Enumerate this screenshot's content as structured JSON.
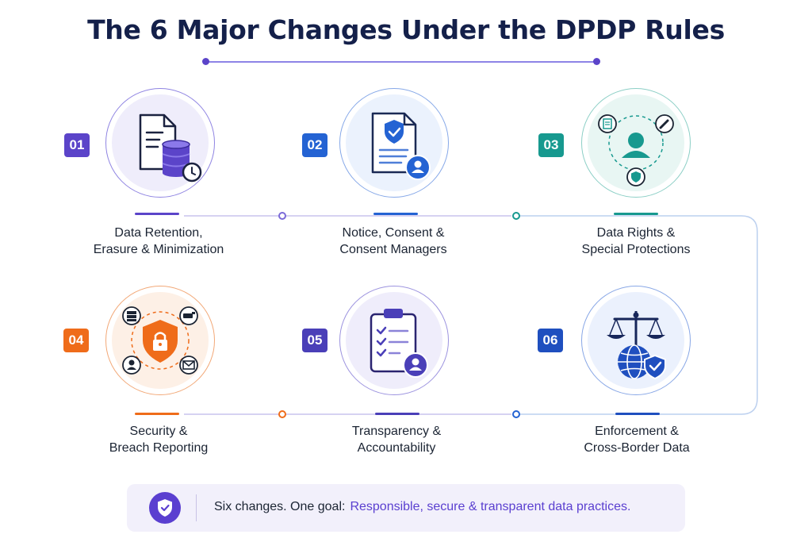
{
  "title": "The 6 Major Changes Under the DPDP Rules",
  "colors": {
    "title": "#14204a",
    "purple": "#5b44c9",
    "blue": "#2463d3",
    "teal": "#17998f",
    "orange": "#ef6c1a",
    "indigo": "#4a3fb8",
    "navy": "#1f4fbf"
  },
  "items": [
    {
      "number": "01",
      "line1": "Data Retention,",
      "line2": "Erasure & Minimization",
      "icon": "document-database-clock-icon",
      "color": "#5b44c9"
    },
    {
      "number": "02",
      "line1": "Notice, Consent &",
      "line2": "Consent Managers",
      "icon": "document-shield-user-icon",
      "color": "#2463d3"
    },
    {
      "number": "03",
      "line1": "Data Rights &",
      "line2": "Special Protections",
      "icon": "user-rights-cycle-icon",
      "color": "#17998f"
    },
    {
      "number": "04",
      "line1": "Security &",
      "line2": "Breach Reporting",
      "icon": "shield-lock-network-icon",
      "color": "#ef6c1a"
    },
    {
      "number": "05",
      "line1": "Transparency &",
      "line2": "Accountability",
      "icon": "clipboard-checklist-user-icon",
      "color": "#4a3fb8"
    },
    {
      "number": "06",
      "line1": "Enforcement &",
      "line2": "Cross-Border Data",
      "icon": "scales-globe-shield-icon",
      "color": "#1f4fbf"
    }
  ],
  "banner": {
    "lead": "Six changes. One goal:",
    "goal": "Responsible, secure & transparent data practices.",
    "icon": "shield-check-icon"
  }
}
